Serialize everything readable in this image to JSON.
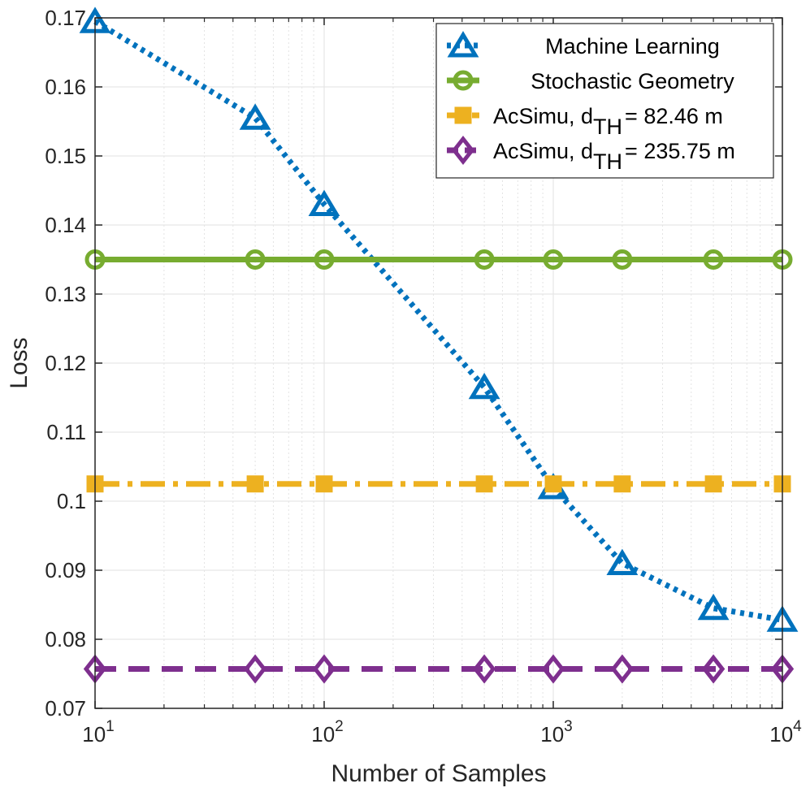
{
  "chart_data": {
    "type": "line",
    "xlabel": "Number of Samples",
    "ylabel": "Loss",
    "x_scale": "log",
    "xlim": [
      10,
      10000
    ],
    "ylim": [
      0.07,
      0.17
    ],
    "grid": true,
    "legend_position": "top-right",
    "x_ticks": [
      10,
      100,
      1000,
      10000
    ],
    "x_tick_labels": [
      {
        "base": "10",
        "exp": "1"
      },
      {
        "base": "10",
        "exp": "2"
      },
      {
        "base": "10",
        "exp": "3"
      },
      {
        "base": "10",
        "exp": "4"
      }
    ],
    "y_ticks": [
      0.07,
      0.08,
      0.09,
      0.1,
      0.11,
      0.12,
      0.13,
      0.14,
      0.15,
      0.16,
      0.17
    ],
    "y_tick_labels": [
      "0.07",
      "0.08",
      "0.09",
      "0.1",
      "0.11",
      "0.12",
      "0.13",
      "0.14",
      "0.15",
      "0.16",
      "0.17"
    ],
    "x": [
      10,
      50,
      100,
      500,
      1000,
      2000,
      5000,
      10000
    ],
    "series": [
      {
        "name": "Machine Learning",
        "legend_main": "Machine Learning",
        "legend_sub": "",
        "legend_tail": "",
        "color": "#0072BD",
        "marker": "triangle",
        "dash": "dotted",
        "values": [
          0.1695,
          0.1555,
          0.143,
          0.1165,
          0.102,
          0.091,
          0.0845,
          0.0828
        ]
      },
      {
        "name": "Stochastic Geometry",
        "legend_main": "Stochastic Geometry",
        "legend_sub": "",
        "legend_tail": "",
        "color": "#77AC30",
        "marker": "circle",
        "dash": "solid",
        "values": [
          0.135,
          0.135,
          0.135,
          0.135,
          0.135,
          0.135,
          0.135,
          0.135
        ]
      },
      {
        "name": "AcSimu, dTH =  82.46  m",
        "legend_main": "AcSimu, d",
        "legend_sub": "TH",
        "legend_tail": "=  82.46  m",
        "color": "#EDB120",
        "marker": "square",
        "dash": "dashdot",
        "values": [
          0.1025,
          0.1025,
          0.1025,
          0.1025,
          0.1025,
          0.1025,
          0.1025,
          0.1025
        ]
      },
      {
        "name": "AcSimu, dTH = 235.75 m",
        "legend_main": "AcSimu, d",
        "legend_sub": "TH",
        "legend_tail": "= 235.75 m",
        "color": "#7E2F8E",
        "marker": "diamond",
        "dash": "dashed",
        "values": [
          0.0757,
          0.0757,
          0.0757,
          0.0757,
          0.0757,
          0.0757,
          0.0757,
          0.0757
        ]
      }
    ]
  }
}
